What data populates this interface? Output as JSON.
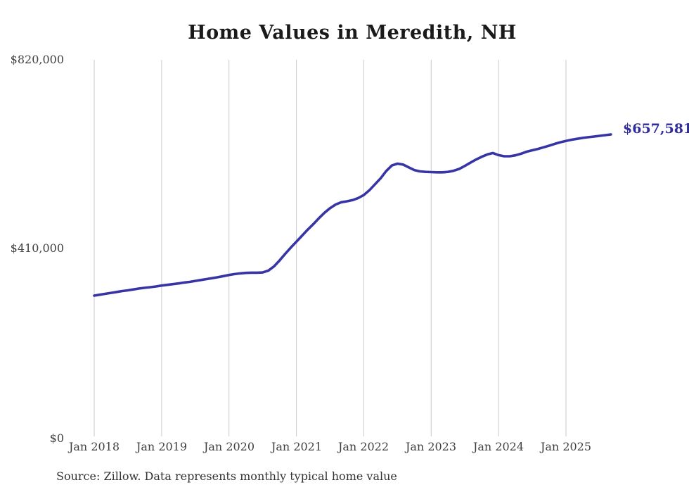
{
  "title": "Home Values in Meredith, NH",
  "source_note": "Source: Zillow. Data represents monthly typical home value",
  "colors": {
    "line": "#3734a6",
    "end_label": "#2f2c9c",
    "grid": "#cacaca",
    "title_text": "#1a1a1a",
    "axis_text": "#404040",
    "source_text": "#333333",
    "background": "#ffffff"
  },
  "chart_data": {
    "type": "line",
    "title": "Home Values in Meredith, NH",
    "xlabel": "",
    "ylabel": "",
    "ylim": [
      0,
      820000
    ],
    "grid": "vertical-yearly",
    "legend": "none",
    "y_tick_labels": [
      "$820,000",
      "$410,000",
      "$0"
    ],
    "y_tick_values": [
      820000,
      410000,
      0
    ],
    "x_tick_labels": [
      "Jan 2018",
      "Jan 2019",
      "Jan 2020",
      "Jan 2021",
      "Jan 2022",
      "Jan 2023",
      "Jan 2024",
      "Jan 2025"
    ],
    "end_label": "$657,581",
    "end_value": 657581,
    "series": [
      {
        "name": "Monthly typical home value",
        "x": [
          "2018-01",
          "2018-02",
          "2018-03",
          "2018-04",
          "2018-05",
          "2018-06",
          "2018-07",
          "2018-08",
          "2018-09",
          "2018-10",
          "2018-11",
          "2018-12",
          "2019-01",
          "2019-02",
          "2019-03",
          "2019-04",
          "2019-05",
          "2019-06",
          "2019-07",
          "2019-08",
          "2019-09",
          "2019-10",
          "2019-11",
          "2019-12",
          "2020-01",
          "2020-02",
          "2020-03",
          "2020-04",
          "2020-05",
          "2020-06",
          "2020-07",
          "2020-08",
          "2020-09",
          "2020-10",
          "2020-11",
          "2020-12",
          "2021-01",
          "2021-02",
          "2021-03",
          "2021-04",
          "2021-05",
          "2021-06",
          "2021-07",
          "2021-08",
          "2021-09",
          "2021-10",
          "2021-11",
          "2021-12",
          "2022-01",
          "2022-02",
          "2022-03",
          "2022-04",
          "2022-05",
          "2022-06",
          "2022-07",
          "2022-08",
          "2022-09",
          "2022-10",
          "2022-11",
          "2022-12",
          "2023-01",
          "2023-02",
          "2023-03",
          "2023-04",
          "2023-05",
          "2023-06",
          "2023-07",
          "2023-08",
          "2023-09",
          "2023-10",
          "2023-11",
          "2023-12",
          "2024-01",
          "2024-02",
          "2024-03",
          "2024-04",
          "2024-05",
          "2024-06",
          "2024-07",
          "2024-08",
          "2024-09",
          "2024-10",
          "2024-11",
          "2024-12",
          "2025-01",
          "2025-02",
          "2025-03",
          "2025-04",
          "2025-05",
          "2025-06",
          "2025-07",
          "2025-08",
          "2025-09"
        ],
        "values": [
          306500,
          308500,
          310500,
          312500,
          314500,
          316500,
          318000,
          320000,
          322000,
          323500,
          325000,
          326500,
          328500,
          330000,
          331500,
          333000,
          335000,
          336500,
          338500,
          340500,
          342500,
          344500,
          346500,
          349000,
          351500,
          353500,
          355000,
          356000,
          356500,
          356500,
          357000,
          361000,
          370000,
          383000,
          397500,
          411000,
          424000,
          437000,
          450000,
          462000,
          475000,
          487000,
          497000,
          505000,
          510000,
          512000,
          514500,
          519000,
          525500,
          536000,
          549000,
          562000,
          578000,
          590000,
          594000,
          592000,
          586000,
          580000,
          577000,
          576000,
          575500,
          575000,
          575000,
          576000,
          578500,
          582500,
          589000,
          596000,
          603000,
          609000,
          614000,
          617000,
          612500,
          610000,
          610000,
          612000,
          615500,
          620000,
          623000,
          626000,
          629500,
          633000,
          637000,
          640500,
          643500,
          646000,
          648000,
          650000,
          651500,
          653000,
          654500,
          656000,
          657581
        ]
      }
    ]
  }
}
